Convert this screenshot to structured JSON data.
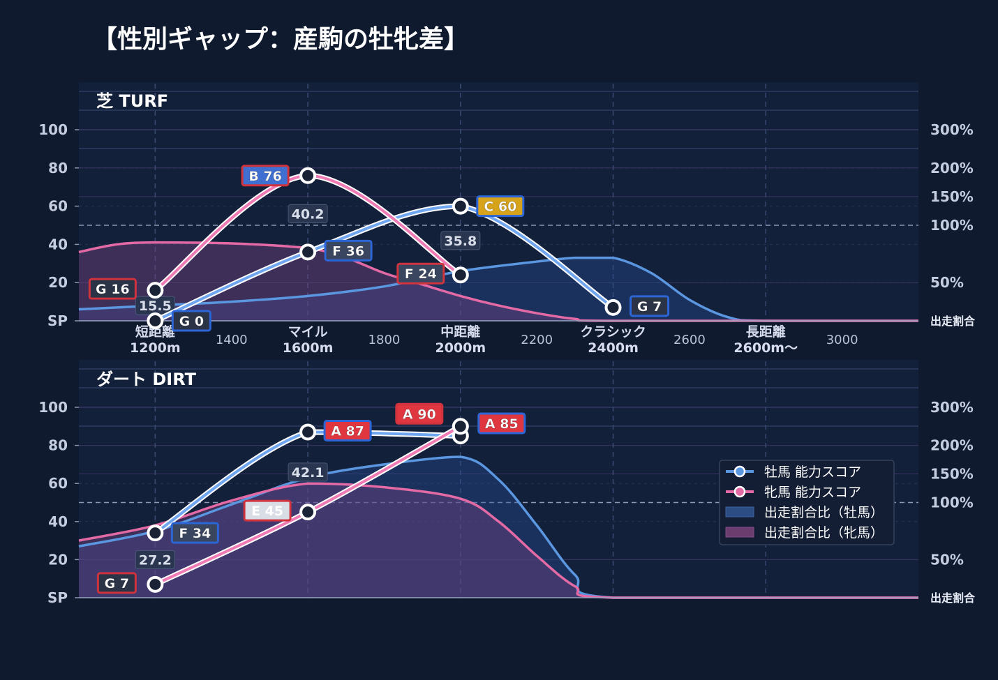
{
  "title": "【性別ギャップ：産駒の牡牝差】",
  "colors": {
    "male": "#5b96e0",
    "female": "#e46aa6",
    "grade_A": "#e0363f",
    "grade_B": "#3f6fd0",
    "grade_C": "#d6a31a",
    "grade_E": "#d9dde6",
    "grade_F": "#3a4660",
    "grade_G": "#2b3446",
    "border_male": "#2c65d6",
    "border_female": "#d0333d"
  },
  "axes": {
    "y_ticks": [
      "SP",
      "20",
      "40",
      "60",
      "80",
      "100"
    ],
    "y_tick_values": [
      0,
      20,
      40,
      60,
      80,
      100
    ],
    "right_ticks": [
      "出走割合",
      "50%",
      "100%",
      "150%",
      "200%",
      "300%"
    ],
    "right_tick_values": [
      0,
      50,
      100,
      150,
      200,
      300
    ],
    "right_tick_map": [
      0,
      20,
      50,
      65,
      80,
      100
    ],
    "x_range": [
      1000,
      3200
    ],
    "x_numeric_ticks": [
      {
        "x": 1400,
        "label": "1400"
      },
      {
        "x": 1800,
        "label": "1800"
      },
      {
        "x": 2200,
        "label": "2200"
      },
      {
        "x": 2600,
        "label": "2600"
      },
      {
        "x": 3000,
        "label": "3000"
      }
    ],
    "x_categories": [
      {
        "x": 1200,
        "line1": "短距離",
        "line2": "1200m"
      },
      {
        "x": 1600,
        "line1": "マイル",
        "line2": "1600m"
      },
      {
        "x": 2000,
        "line1": "中距離",
        "line2": "2000m"
      },
      {
        "x": 2400,
        "line1": "クラシック",
        "line2": "2400m"
      },
      {
        "x": 2800,
        "line1": "長距離",
        "line2": "2600m〜"
      }
    ]
  },
  "legend": {
    "items": [
      {
        "label": "牡馬 能力スコア",
        "kind": "line",
        "series": "male"
      },
      {
        "label": "牝馬 能力スコア",
        "kind": "line",
        "series": "female"
      },
      {
        "label": "出走割合比（牡馬）",
        "kind": "area",
        "series": "male"
      },
      {
        "label": "出走割合比（牝馬）",
        "kind": "area",
        "series": "female"
      }
    ]
  },
  "chart_data": [
    {
      "type": "line",
      "title": "芝 TURF",
      "x": [
        1200,
        1600,
        2000,
        2400
      ],
      "series": [
        {
          "name": "牡馬 能力スコア",
          "key": "male",
          "values": [
            0,
            36,
            60,
            7
          ],
          "grades": [
            "G 0",
            "F 36",
            "C 60",
            "G 7"
          ],
          "grade_keys": [
            "G",
            "F",
            "C",
            "G"
          ]
        },
        {
          "name": "牝馬 能力スコア",
          "key": "female",
          "values": [
            16,
            76,
            24,
            null
          ],
          "grades": [
            "G 16",
            "B 76",
            "F 24",
            ""
          ],
          "grade_keys": [
            "G",
            "B",
            "F",
            ""
          ]
        }
      ],
      "ratio_labels": [
        {
          "x": 1200,
          "y": 8,
          "label": "15.5"
        },
        {
          "x": 1600,
          "y": 56,
          "label": "40.2"
        },
        {
          "x": 2000,
          "y": 42,
          "label": "35.8"
        }
      ],
      "area_series": [
        {
          "name": "出走割合比（牡馬）",
          "key": "male",
          "points": [
            [
              1000,
              6
            ],
            [
              1200,
              8
            ],
            [
              1400,
              10
            ],
            [
              1600,
              13
            ],
            [
              1800,
              18
            ],
            [
              2000,
              26
            ],
            [
              2200,
              31
            ],
            [
              2300,
              33
            ],
            [
              2400,
              33
            ],
            [
              2500,
              25
            ],
            [
              2600,
              11
            ],
            [
              2700,
              2
            ],
            [
              2800,
              0
            ],
            [
              3200,
              0
            ]
          ]
        },
        {
          "name": "出走割合比（牝馬）",
          "key": "female",
          "points": [
            [
              1000,
              36
            ],
            [
              1100,
              40
            ],
            [
              1200,
              41
            ],
            [
              1400,
              40.5
            ],
            [
              1600,
              38
            ],
            [
              1700,
              33
            ],
            [
              1800,
              25
            ],
            [
              1900,
              19
            ],
            [
              2000,
              13
            ],
            [
              2100,
              8
            ],
            [
              2200,
              4
            ],
            [
              2300,
              1
            ],
            [
              2400,
              0
            ],
            [
              3200,
              0
            ]
          ]
        }
      ],
      "ylim": [
        0,
        100
      ]
    },
    {
      "type": "line",
      "title": "ダート DIRT",
      "x": [
        1200,
        1600,
        2000
      ],
      "series": [
        {
          "name": "牡馬 能力スコア",
          "key": "male",
          "values": [
            34,
            87,
            85
          ],
          "grades": [
            "F 34",
            "A 87",
            "A 85"
          ],
          "grade_keys": [
            "F",
            "A",
            "A"
          ]
        },
        {
          "name": "牝馬 能力スコア",
          "key": "female",
          "values": [
            7,
            45,
            90
          ],
          "grades": [
            "G 7",
            "E 45",
            "A 90"
          ],
          "grade_keys": [
            "G",
            "E",
            "A"
          ]
        }
      ],
      "ratio_labels": [
        {
          "x": 1200,
          "y": 20,
          "label": "27.2"
        },
        {
          "x": 1600,
          "y": 66,
          "label": "42.1"
        }
      ],
      "area_series": [
        {
          "name": "出走割合比（牡馬）",
          "key": "male",
          "points": [
            [
              1000,
              27
            ],
            [
              1200,
              35
            ],
            [
              1400,
              49
            ],
            [
              1600,
              63
            ],
            [
              1800,
              70
            ],
            [
              2000,
              74
            ],
            [
              2100,
              62
            ],
            [
              2200,
              38
            ],
            [
              2300,
              12
            ],
            [
              2400,
              0
            ],
            [
              3200,
              0
            ]
          ]
        },
        {
          "name": "出走割合比（牝馬）",
          "key": "female",
          "points": [
            [
              1000,
              30
            ],
            [
              1200,
              38
            ],
            [
              1400,
              51
            ],
            [
              1600,
              60
            ],
            [
              1800,
              58
            ],
            [
              2000,
              52
            ],
            [
              2100,
              40
            ],
            [
              2200,
              22
            ],
            [
              2300,
              6
            ],
            [
              2400,
              0
            ],
            [
              3200,
              0
            ]
          ]
        }
      ],
      "ylim": [
        0,
        100
      ]
    }
  ]
}
